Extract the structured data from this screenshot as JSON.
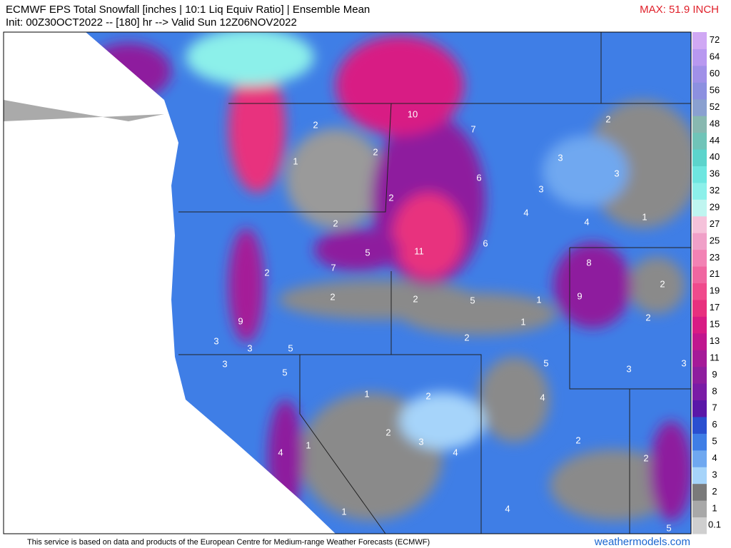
{
  "header": {
    "title": "ECMWF EPS Total Snowfall [inches | 10:1 Liq Equiv Ratio] | Ensemble Mean",
    "subtitle": "Init: 00Z30OCT2022 -- [180] hr --> Valid Sun 12Z06NOV2022",
    "max": "MAX: 51.9 INCH"
  },
  "colorbar": {
    "labels": [
      0.1,
      1,
      2,
      3,
      4,
      5,
      6,
      7,
      8,
      9,
      11,
      13,
      15,
      17,
      19,
      21,
      23,
      25,
      27,
      29,
      32,
      36,
      40,
      44,
      48,
      52,
      56,
      60,
      64,
      72
    ],
    "colors": [
      "#cfcfcf",
      "#a8a8a8",
      "#7a7a7a",
      "#a6d4fa",
      "#6fa8f0",
      "#3f7ee6",
      "#2a4fd0",
      "#5a17a8",
      "#7a1ca6",
      "#8e1e9e",
      "#a51a98",
      "#c0168e",
      "#d81b84",
      "#e8307e",
      "#f04a8c",
      "#f066a0",
      "#f282b4",
      "#f0a0c8",
      "#f5c2da",
      "#bff5f0",
      "#8cf0ea",
      "#6ee6e0",
      "#5cd4cc",
      "#70c4b8",
      "#88b8b0",
      "#8aa0d0",
      "#8c90e0",
      "#a090e8",
      "#b898f0",
      "#d0a8f4"
    ]
  },
  "map": {
    "labels": [
      10,
      7,
      2,
      2,
      1,
      6,
      3,
      2,
      3,
      3,
      4,
      2,
      2,
      4,
      1,
      5,
      11,
      6,
      7,
      2,
      8,
      2,
      9,
      2,
      2,
      5,
      1,
      2,
      1,
      9,
      2,
      3,
      3,
      5,
      3,
      5,
      5,
      3,
      3,
      1,
      2,
      4,
      2,
      3,
      4,
      1,
      4,
      2,
      2,
      4,
      1,
      5
    ]
  },
  "footer": {
    "credit": "This service is based on data and products of the European Centre for Medium-range Weather Forecasts (ECMWF)",
    "site": "weathermodels.com"
  }
}
